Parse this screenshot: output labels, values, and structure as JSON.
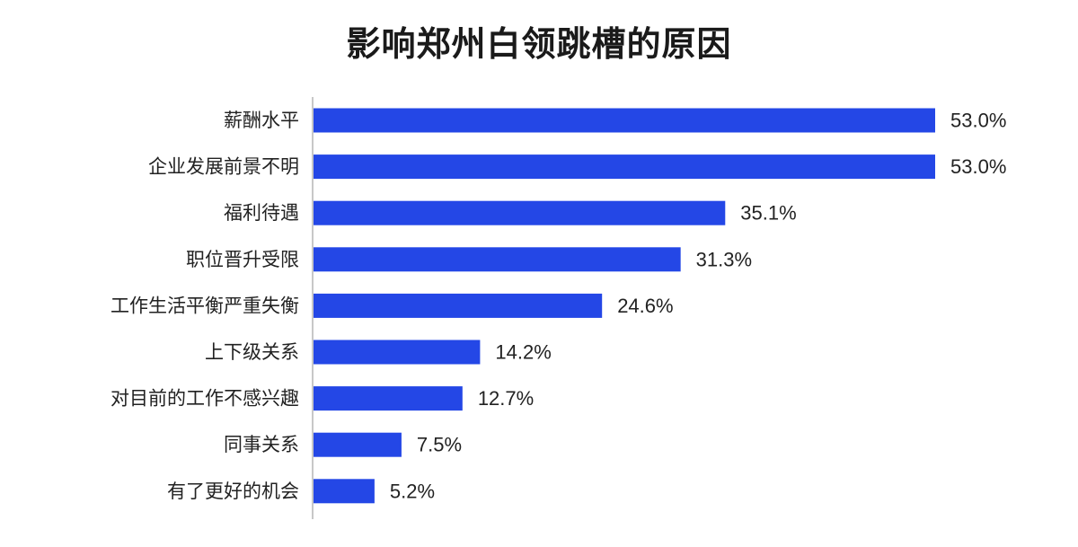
{
  "chart_data": {
    "type": "bar",
    "orientation": "horizontal",
    "title": "影响郑州白领跳槽的原因",
    "categories": [
      "薪酬水平",
      "企业发展前景不明",
      "福利待遇",
      "职位晋升受限",
      "工作生活平衡严重失衡",
      "上下级关系",
      "对目前的工作不感兴趣",
      "同事关系",
      "有了更好的机会"
    ],
    "values": [
      53.0,
      53.0,
      35.1,
      31.3,
      24.6,
      14.2,
      12.7,
      7.5,
      5.2
    ],
    "value_labels": [
      "53.0%",
      "53.0%",
      "35.1%",
      "31.3%",
      "24.6%",
      "14.2%",
      "12.7%",
      "7.5%",
      "5.2%"
    ],
    "unit": "%",
    "xlim": [
      0,
      53
    ],
    "grid": false,
    "legend": "none",
    "colors": {
      "bar": "#2447e6",
      "axis": "#c8c8c8",
      "text": "#222222"
    }
  }
}
